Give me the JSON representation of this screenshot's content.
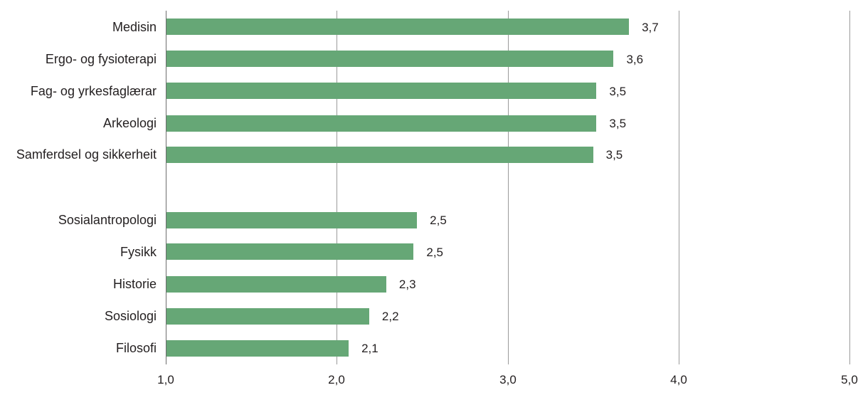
{
  "chart_data": {
    "type": "bar",
    "orientation": "horizontal",
    "title": "",
    "xlabel": "",
    "ylabel": "",
    "xlim": [
      1.0,
      5.0
    ],
    "grid": true,
    "bar_color": "#66a776",
    "x_ticks": [
      "1,0",
      "2,0",
      "3,0",
      "4,0",
      "5,0"
    ],
    "categories": [
      "Medisin",
      "Ergo- og fysioterapi",
      "Fag- og yrkesfaglærar",
      "Arkeologi",
      "Samferdsel og sikkerheit",
      "Sosialantropologi",
      "Fysikk",
      "Historie",
      "Sosiologi",
      "Filosofi"
    ],
    "values": [
      3.7,
      3.6,
      3.5,
      3.5,
      3.5,
      2.5,
      2.5,
      2.3,
      2.2,
      2.1
    ],
    "value_labels": [
      "3,7",
      "3,6",
      "3,5",
      "3,5",
      "3,5",
      "2,5",
      "2,5",
      "2,3",
      "2,2",
      "2,1"
    ],
    "precise_values": [
      3.71,
      3.62,
      3.52,
      3.52,
      3.5,
      2.47,
      2.45,
      2.29,
      2.19,
      2.07
    ],
    "groups": [
      {
        "name": "top",
        "indices": [
          0,
          1,
          2,
          3,
          4
        ]
      },
      {
        "name": "bottom",
        "indices": [
          5,
          6,
          7,
          8,
          9
        ]
      }
    ]
  }
}
